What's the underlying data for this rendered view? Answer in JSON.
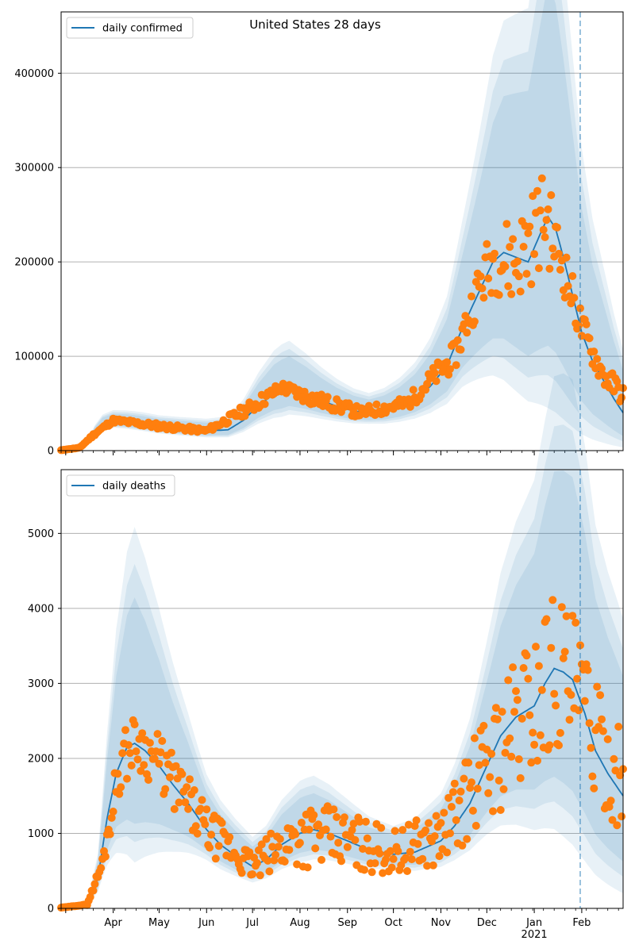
{
  "figure": {
    "title": "United States 28 days"
  },
  "style": {
    "line_color": "#1f77b4",
    "dot_color": "#ff7f0e",
    "band_color": "#1f77b4",
    "grid_color": "#b0b0b0",
    "vline_color": "#1f77b4"
  },
  "chart_data": [
    {
      "type": "line",
      "title": "United States 28 days",
      "legend": "daily confirmed",
      "legend_position": "top-left",
      "xlabel": "",
      "ylabel": "",
      "ylim": [
        0,
        465000
      ],
      "yticks": [
        0,
        100000,
        200000,
        300000,
        400000
      ],
      "ytick_labels": [
        "0",
        "100000",
        "200000",
        "300000",
        "400000"
      ],
      "grid": "horizontal",
      "vline_date": "2021-01-31",
      "center_line": [
        [
          "2020-02-27",
          0
        ],
        [
          "2020-03-10",
          3000
        ],
        [
          "2020-03-15",
          8000
        ],
        [
          "2020-03-20",
          20000
        ],
        [
          "2020-03-25",
          28000
        ],
        [
          "2020-04-01",
          31000
        ],
        [
          "2020-04-10",
          30000
        ],
        [
          "2020-04-20",
          28000
        ],
        [
          "2020-05-01",
          25000
        ],
        [
          "2020-05-15",
          23000
        ],
        [
          "2020-06-01",
          21000
        ],
        [
          "2020-06-15",
          22000
        ],
        [
          "2020-06-25",
          32000
        ],
        [
          "2020-07-05",
          48000
        ],
        [
          "2020-07-15",
          60000
        ],
        [
          "2020-07-25",
          66000
        ],
        [
          "2020-08-05",
          60000
        ],
        [
          "2020-08-15",
          53000
        ],
        [
          "2020-08-25",
          47000
        ],
        [
          "2020-09-05",
          42000
        ],
        [
          "2020-09-15",
          40000
        ],
        [
          "2020-09-25",
          42000
        ],
        [
          "2020-10-05",
          47000
        ],
        [
          "2020-10-15",
          55000
        ],
        [
          "2020-10-25",
          68000
        ],
        [
          "2020-11-05",
          90000
        ],
        [
          "2020-11-15",
          130000
        ],
        [
          "2020-11-25",
          165000
        ],
        [
          "2020-12-05",
          200000
        ],
        [
          "2020-12-12",
          210000
        ],
        [
          "2020-12-20",
          205000
        ],
        [
          "2020-12-28",
          200000
        ],
        [
          "2021-01-05",
          230000
        ],
        [
          "2021-01-10",
          248000
        ],
        [
          "2021-01-15",
          235000
        ],
        [
          "2021-01-20",
          205000
        ],
        [
          "2021-01-26",
          165000
        ],
        [
          "2021-02-01",
          125000
        ],
        [
          "2021-02-08",
          95000
        ],
        [
          "2021-02-15",
          75000
        ],
        [
          "2021-02-22",
          55000
        ],
        [
          "2021-02-28",
          40000
        ]
      ],
      "band_scale": [
        [
          "2020-02-27",
          0.15
        ],
        [
          "2020-04-15",
          0.25
        ],
        [
          "2020-07-20",
          0.45
        ],
        [
          "2020-09-15",
          0.3
        ],
        [
          "2020-11-15",
          0.5
        ],
        [
          "2021-01-10",
          0.85
        ],
        [
          "2021-02-28",
          0.95
        ]
      ],
      "observed_knots": [
        [
          "2020-02-27",
          500,
          0
        ],
        [
          "2020-03-10",
          3000,
          0.1
        ],
        [
          "2020-03-20",
          18000,
          0.1
        ],
        [
          "2020-04-01",
          32000,
          0.08
        ],
        [
          "2020-05-01",
          26000,
          0.12
        ],
        [
          "2020-06-01",
          21000,
          0.12
        ],
        [
          "2020-07-01",
          47000,
          0.15
        ],
        [
          "2020-07-20",
          67000,
          0.1
        ],
        [
          "2020-08-10",
          55000,
          0.15
        ],
        [
          "2020-09-10",
          40000,
          0.15
        ],
        [
          "2020-10-10",
          50000,
          0.15
        ],
        [
          "2020-11-10",
          100000,
          0.15
        ],
        [
          "2020-11-25",
          170000,
          0.15
        ],
        [
          "2020-12-05",
          205000,
          0.18
        ],
        [
          "2020-12-20",
          200000,
          0.25
        ],
        [
          "2021-01-08",
          250000,
          0.2
        ],
        [
          "2021-01-20",
          195000,
          0.15
        ],
        [
          "2021-02-01",
          130000,
          0.15
        ],
        [
          "2021-02-15",
          80000,
          0.15
        ],
        [
          "2021-02-28",
          60000,
          0.2
        ]
      ]
    },
    {
      "type": "line",
      "title": "",
      "legend": "daily deaths",
      "legend_position": "top-left",
      "xlabel": "",
      "ylabel": "",
      "ylim": [
        0,
        5850
      ],
      "yticks": [
        0,
        1000,
        2000,
        3000,
        4000,
        5000
      ],
      "ytick_labels": [
        "0",
        "1000",
        "2000",
        "3000",
        "4000",
        "5000"
      ],
      "grid": "horizontal",
      "vline_date": "2021-01-31",
      "xtick_labels": [
        "Apr",
        "May",
        "Jun",
        "Jul",
        "Aug",
        "Sep",
        "Oct",
        "Nov",
        "Dec",
        "Jan",
        "Feb"
      ],
      "xtick_dates": [
        "2020-04-01",
        "2020-05-01",
        "2020-06-01",
        "2020-07-01",
        "2020-08-01",
        "2020-09-01",
        "2020-10-01",
        "2020-11-01",
        "2020-12-01",
        "2021-01-01",
        "2021-02-01"
      ],
      "year_label": "2021",
      "center_line": [
        [
          "2020-02-27",
          0
        ],
        [
          "2020-03-15",
          50
        ],
        [
          "2020-03-22",
          400
        ],
        [
          "2020-03-28",
          1200
        ],
        [
          "2020-04-03",
          1800
        ],
        [
          "2020-04-10",
          2150
        ],
        [
          "2020-04-15",
          2200
        ],
        [
          "2020-04-22",
          2100
        ],
        [
          "2020-05-01",
          1900
        ],
        [
          "2020-05-10",
          1650
        ],
        [
          "2020-05-20",
          1400
        ],
        [
          "2020-06-01",
          1050
        ],
        [
          "2020-06-10",
          850
        ],
        [
          "2020-06-20",
          700
        ],
        [
          "2020-07-01",
          560
        ],
        [
          "2020-07-10",
          650
        ],
        [
          "2020-07-20",
          850
        ],
        [
          "2020-08-01",
          1000
        ],
        [
          "2020-08-10",
          1050
        ],
        [
          "2020-08-20",
          1000
        ],
        [
          "2020-09-01",
          900
        ],
        [
          "2020-09-15",
          780
        ],
        [
          "2020-10-01",
          720
        ],
        [
          "2020-10-15",
          750
        ],
        [
          "2020-11-01",
          900
        ],
        [
          "2020-11-10",
          1100
        ],
        [
          "2020-11-20",
          1400
        ],
        [
          "2020-12-01",
          1900
        ],
        [
          "2020-12-10",
          2300
        ],
        [
          "2020-12-20",
          2550
        ],
        [
          "2021-01-01",
          2700
        ],
        [
          "2021-01-08",
          3000
        ],
        [
          "2021-01-14",
          3200
        ],
        [
          "2021-01-20",
          3150
        ],
        [
          "2021-01-26",
          3050
        ],
        [
          "2021-02-03",
          2600
        ],
        [
          "2021-02-10",
          2100
        ],
        [
          "2021-02-18",
          1800
        ],
        [
          "2021-02-28",
          1500
        ]
      ],
      "band_scale": [
        [
          "2020-02-27",
          0.2
        ],
        [
          "2020-04-15",
          0.75
        ],
        [
          "2020-06-01",
          0.4
        ],
        [
          "2020-08-05",
          0.4
        ],
        [
          "2020-10-01",
          0.3
        ],
        [
          "2020-12-01",
          0.5
        ],
        [
          "2021-01-15",
          0.7
        ],
        [
          "2021-02-28",
          0.9
        ]
      ],
      "observed_knots": [
        [
          "2020-02-27",
          10,
          0
        ],
        [
          "2020-03-15",
          50,
          0.1
        ],
        [
          "2020-03-25",
          600,
          0.2
        ],
        [
          "2020-04-05",
          1900,
          0.2
        ],
        [
          "2020-04-15",
          2250,
          0.15
        ],
        [
          "2020-05-01",
          1950,
          0.2
        ],
        [
          "2020-06-01",
          1050,
          0.3
        ],
        [
          "2020-07-01",
          550,
          0.35
        ],
        [
          "2020-08-01",
          1000,
          0.45
        ],
        [
          "2020-09-01",
          900,
          0.45
        ],
        [
          "2020-10-01",
          750,
          0.4
        ],
        [
          "2020-11-01",
          950,
          0.4
        ],
        [
          "2020-12-01",
          1900,
          0.4
        ],
        [
          "2021-01-01",
          2800,
          0.4
        ],
        [
          "2021-01-15",
          3250,
          0.35
        ],
        [
          "2021-01-31",
          2800,
          0.35
        ],
        [
          "2021-02-15",
          2000,
          0.35
        ],
        [
          "2021-02-28",
          1700,
          0.4
        ]
      ]
    }
  ]
}
